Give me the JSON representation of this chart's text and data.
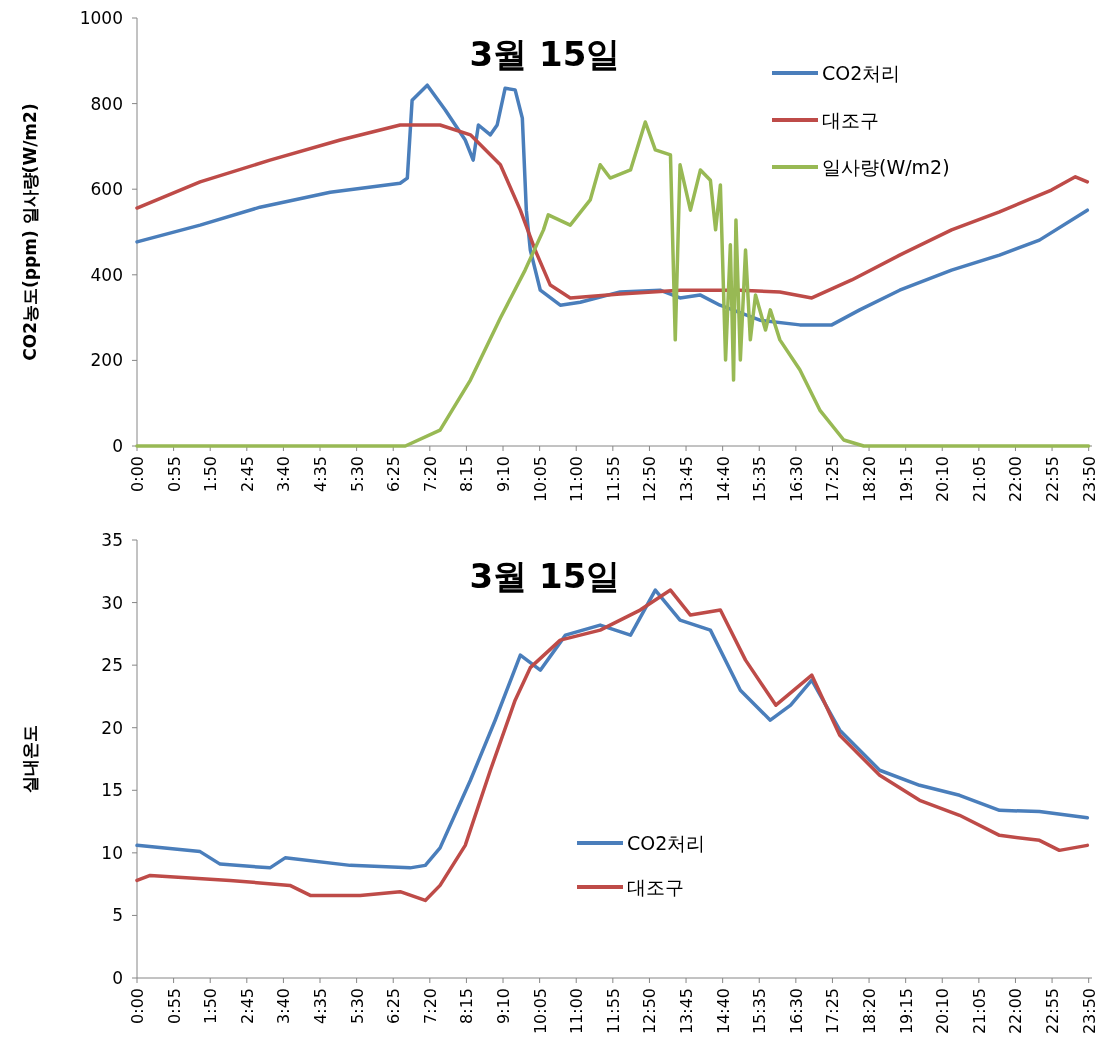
{
  "chart_data": [
    {
      "type": "line",
      "title": "3월 15일",
      "ylabel": "CO2농도(ppm)  일사량(W/m2)",
      "legend": "top right",
      "xlim": [
        0,
        23.916667
      ],
      "ylim": [
        0,
        1000
      ],
      "yticks": [
        0,
        200,
        400,
        600,
        800,
        1000
      ],
      "xticks": [
        {
          "value": 0,
          "label": "0:00"
        },
        {
          "value": 0.916667,
          "label": "0:55"
        },
        {
          "value": 1.833333,
          "label": "1:50"
        },
        {
          "value": 2.75,
          "label": "2:45"
        },
        {
          "value": 3.666667,
          "label": "3:40"
        },
        {
          "value": 4.583333,
          "label": "4:35"
        },
        {
          "value": 5.5,
          "label": "5:30"
        },
        {
          "value": 6.416667,
          "label": "6:25"
        },
        {
          "value": 7.333333,
          "label": "7:20"
        },
        {
          "value": 8.25,
          "label": "8:15"
        },
        {
          "value": 9.166667,
          "label": "9:10"
        },
        {
          "value": 10.083333,
          "label": "10:05"
        },
        {
          "value": 11,
          "label": "11:00"
        },
        {
          "value": 11.916667,
          "label": "11:55"
        },
        {
          "value": 12.833333,
          "label": "12:50"
        },
        {
          "value": 13.75,
          "label": "13:45"
        },
        {
          "value": 14.666667,
          "label": "14:40"
        },
        {
          "value": 15.583333,
          "label": "15:35"
        },
        {
          "value": 16.5,
          "label": "16:30"
        },
        {
          "value": 17.416667,
          "label": "17:25"
        },
        {
          "value": 18.333333,
          "label": "18:20"
        },
        {
          "value": 19.25,
          "label": "19:15"
        },
        {
          "value": 20.166667,
          "label": "20:10"
        },
        {
          "value": 21.083333,
          "label": "21:05"
        },
        {
          "value": 22,
          "label": "22:00"
        },
        {
          "value": 22.916667,
          "label": "22:55"
        },
        {
          "value": 23.833333,
          "label": "23:50"
        }
      ],
      "series": [
        {
          "name": "CO2처리",
          "color": "#4a7ebb",
          "x": [
            0,
            1.58,
            3.08,
            4.84,
            6.59,
            6.77,
            6.89,
            7.27,
            7.72,
            8.22,
            8.42,
            8.55,
            8.85,
            9.02,
            9.22,
            9.47,
            9.65,
            9.75,
            9.85,
            10.1,
            10.6,
            11.1,
            12.1,
            13.1,
            13.6,
            14.1,
            14.6,
            15.6,
            16.6,
            17.4,
            18.1,
            19.1,
            20.4,
            21.6,
            22.6,
            23.8
          ],
          "values": [
            477,
            516,
            558,
            593,
            614,
            626,
            808,
            843,
            785,
            715,
            668,
            750,
            727,
            750,
            836,
            832,
            766,
            551,
            458,
            364,
            329,
            336,
            360,
            364,
            346,
            353,
            329,
            294,
            283,
            283,
            318,
            364,
            411,
            446,
            481,
            551
          ]
        },
        {
          "name": "대조구",
          "color": "#be4b48",
          "x": [
            0,
            1.58,
            3.33,
            5.09,
            6.59,
            7.59,
            8.35,
            9.1,
            9.6,
            9.97,
            10.35,
            10.85,
            12.1,
            13.6,
            15.1,
            16.1,
            16.9,
            17.9,
            19.1,
            20.4,
            21.6,
            22.9,
            23.5,
            23.8
          ],
          "values": [
            556,
            617,
            668,
            715,
            750,
            750,
            727,
            657,
            551,
            458,
            376,
            346,
            355,
            364,
            364,
            360,
            346,
            388,
            446,
            505,
            547,
            598,
            629,
            617
          ]
        },
        {
          "name": "일사량(W/m2)",
          "color": "#98b954",
          "x": [
            0,
            6.72,
            7.59,
            8.35,
            9.1,
            9.72,
            10.18,
            10.3,
            10.85,
            11.35,
            11.6,
            11.85,
            12.36,
            12.73,
            12.98,
            13.36,
            13.48,
            13.6,
            13.86,
            14.11,
            14.36,
            14.49,
            14.61,
            14.74,
            14.86,
            14.94,
            15.0,
            15.11,
            15.24,
            15.36,
            15.49,
            15.74,
            15.86,
            16.1,
            16.6,
            17.1,
            17.7,
            18.2,
            23.83
          ],
          "values": [
            0,
            0,
            37,
            154,
            299,
            411,
            505,
            540,
            516,
            575,
            657,
            626,
            645,
            757,
            692,
            680,
            248,
            657,
            551,
            645,
            621,
            505,
            610,
            201,
            470,
            154,
            528,
            201,
            458,
            248,
            353,
            271,
            318,
            248,
            178,
            84,
            14,
            0,
            0
          ]
        }
      ]
    },
    {
      "type": "line",
      "title": "3월 15일",
      "ylabel": "실내온도",
      "legend": "bottom",
      "xlim": [
        0,
        23.916667
      ],
      "ylim": [
        0,
        35
      ],
      "yticks": [
        0,
        5,
        10,
        15,
        20,
        25,
        30,
        35
      ],
      "xticks": [
        {
          "value": 0,
          "label": "0:00"
        },
        {
          "value": 0.916667,
          "label": "0:55"
        },
        {
          "value": 1.833333,
          "label": "1:50"
        },
        {
          "value": 2.75,
          "label": "2:45"
        },
        {
          "value": 3.666667,
          "label": "3:40"
        },
        {
          "value": 4.583333,
          "label": "4:35"
        },
        {
          "value": 5.5,
          "label": "5:30"
        },
        {
          "value": 6.416667,
          "label": "6:25"
        },
        {
          "value": 7.333333,
          "label": "7:20"
        },
        {
          "value": 8.25,
          "label": "8:15"
        },
        {
          "value": 9.166667,
          "label": "9:10"
        },
        {
          "value": 10.083333,
          "label": "10:05"
        },
        {
          "value": 11,
          "label": "11:00"
        },
        {
          "value": 11.916667,
          "label": "11:55"
        },
        {
          "value": 12.833333,
          "label": "12:50"
        },
        {
          "value": 13.75,
          "label": "13:45"
        },
        {
          "value": 14.666667,
          "label": "14:40"
        },
        {
          "value": 15.583333,
          "label": "15:35"
        },
        {
          "value": 16.5,
          "label": "16:30"
        },
        {
          "value": 17.416667,
          "label": "17:25"
        },
        {
          "value": 18.333333,
          "label": "18:20"
        },
        {
          "value": 19.25,
          "label": "19:15"
        },
        {
          "value": 20.166667,
          "label": "20:10"
        },
        {
          "value": 21.083333,
          "label": "21:05"
        },
        {
          "value": 22,
          "label": "22:00"
        },
        {
          "value": 22.916667,
          "label": "22:55"
        },
        {
          "value": 23.833333,
          "label": "23:50"
        }
      ],
      "series": [
        {
          "name": "CO2처리",
          "color": "#4a7ebb",
          "x": [
            0,
            1.58,
            2.08,
            3.33,
            3.71,
            5.34,
            6.84,
            7.22,
            7.59,
            8.35,
            8.97,
            9.6,
            10.1,
            10.73,
            11.6,
            12.36,
            12.98,
            13.6,
            14.36,
            15.11,
            15.86,
            16.37,
            16.9,
            17.6,
            18.6,
            19.6,
            20.6,
            21.6,
            22.6,
            23.8
          ],
          "values": [
            10.6,
            10.1,
            9.1,
            8.8,
            9.6,
            9.0,
            8.8,
            9.0,
            10.4,
            15.8,
            20.6,
            25.8,
            24.6,
            27.4,
            28.2,
            27.4,
            31.0,
            28.6,
            27.8,
            23.0,
            20.6,
            21.8,
            23.8,
            19.8,
            16.6,
            15.4,
            14.6,
            13.4,
            13.3,
            12.8
          ]
        },
        {
          "name": "대조구",
          "color": "#be4b48",
          "x": [
            0,
            0.33,
            2.33,
            3.83,
            4.34,
            5.59,
            6.59,
            7.22,
            7.59,
            8.22,
            8.85,
            9.47,
            9.85,
            10.6,
            11.6,
            12.6,
            13.36,
            13.86,
            14.61,
            15.24,
            16.0,
            16.9,
            17.6,
            18.6,
            19.6,
            20.6,
            21.6,
            22.6,
            23.1,
            23.8
          ],
          "values": [
            7.8,
            8.2,
            7.8,
            7.4,
            6.6,
            6.6,
            6.9,
            6.2,
            7.4,
            10.6,
            16.6,
            22.2,
            24.8,
            27.0,
            27.8,
            29.4,
            31.0,
            29.0,
            29.4,
            25.4,
            21.8,
            24.2,
            19.4,
            16.2,
            14.2,
            13.0,
            11.4,
            11.0,
            10.2,
            10.6
          ]
        }
      ]
    }
  ]
}
